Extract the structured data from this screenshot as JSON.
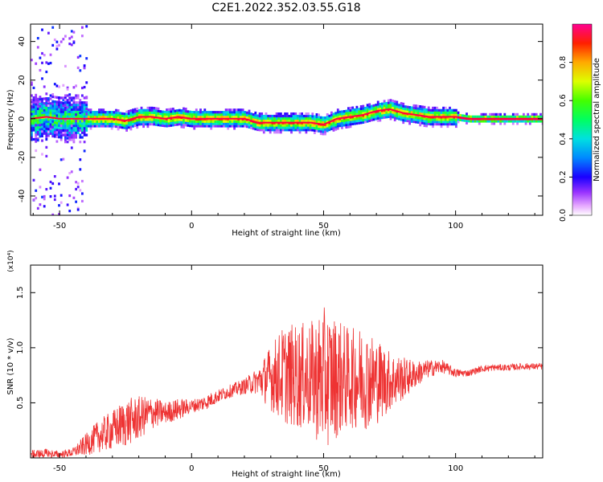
{
  "title": "C2E1.2022.352.03.55.G18",
  "chart_data": [
    {
      "type": "heatmap",
      "xlabel": "Height of straight line (km)",
      "ylabel": "Frequency (Hz)",
      "xlim": [
        -61,
        133
      ],
      "ylim": [
        -50,
        49
      ],
      "xticks": [
        -50,
        0,
        50,
        100
      ],
      "yticks": [
        -40,
        -20,
        0,
        20,
        40
      ],
      "colorbar": {
        "label": "Normalized spectral amplitude",
        "range": [
          0.0,
          1.0
        ],
        "ticks": [
          0.0,
          0.2,
          0.4,
          0.6,
          0.8
        ]
      },
      "ridge": {
        "x": [
          -61,
          -55,
          -50,
          -45,
          -40,
          -35,
          -30,
          -25,
          -20,
          -15,
          -10,
          -5,
          0,
          5,
          10,
          15,
          20,
          25,
          30,
          35,
          40,
          45,
          50,
          55,
          60,
          65,
          70,
          75,
          80,
          85,
          90,
          95,
          100,
          105,
          110,
          115,
          120,
          125,
          133
        ],
        "y": [
          0,
          1,
          0,
          0,
          0,
          0,
          0,
          -1,
          1,
          1,
          0,
          1,
          0,
          0,
          0,
          0,
          0,
          -2,
          -2,
          -2,
          -2,
          -2,
          -3,
          0,
          1,
          2,
          4,
          5,
          3,
          2,
          1,
          1,
          1,
          0,
          0,
          0,
          0,
          0,
          0
        ]
      }
    },
    {
      "type": "line",
      "xlabel": "Height of straight line (km)",
      "ylabel": "SNR (10 * v/v)",
      "multiplier": "(x10⁴)",
      "xlim": [
        -61,
        133
      ],
      "ylim": [
        0,
        17500
      ],
      "xticks": [
        -50,
        0,
        50,
        100
      ],
      "yticks": [
        5000,
        10000,
        15000
      ],
      "ytick_labels": [
        "0.5",
        "1.0",
        "1.5"
      ],
      "color": "#ee3333",
      "envelope": {
        "x": [
          -61,
          -55,
          -50,
          -45,
          -40,
          -35,
          -30,
          -25,
          -20,
          -15,
          -10,
          -5,
          0,
          5,
          10,
          15,
          20,
          25,
          30,
          35,
          40,
          45,
          50,
          55,
          60,
          65,
          70,
          75,
          80,
          85,
          90,
          95,
          100,
          105,
          110,
          115,
          120,
          125,
          133
        ],
        "mean": [
          300,
          350,
          300,
          500,
          1200,
          2000,
          2500,
          3200,
          3600,
          4100,
          4100,
          4400,
          4700,
          5000,
          5600,
          6100,
          6500,
          7000,
          7300,
          7600,
          7400,
          7300,
          7200,
          7300,
          7200,
          7300,
          7000,
          7000,
          7200,
          7600,
          8100,
          8300,
          7700,
          7700,
          8100,
          8200,
          8200,
          8300,
          8300
        ],
        "spread": [
          400,
          500,
          300,
          400,
          1000,
          1500,
          1800,
          2200,
          2000,
          1500,
          1000,
          1000,
          600,
          700,
          600,
          600,
          700,
          1200,
          3000,
          4500,
          4800,
          5000,
          6500,
          5500,
          4500,
          4800,
          4000,
          2800,
          2000,
          1200,
          800,
          600,
          400,
          300,
          300,
          300,
          300,
          300,
          300
        ]
      }
    }
  ]
}
